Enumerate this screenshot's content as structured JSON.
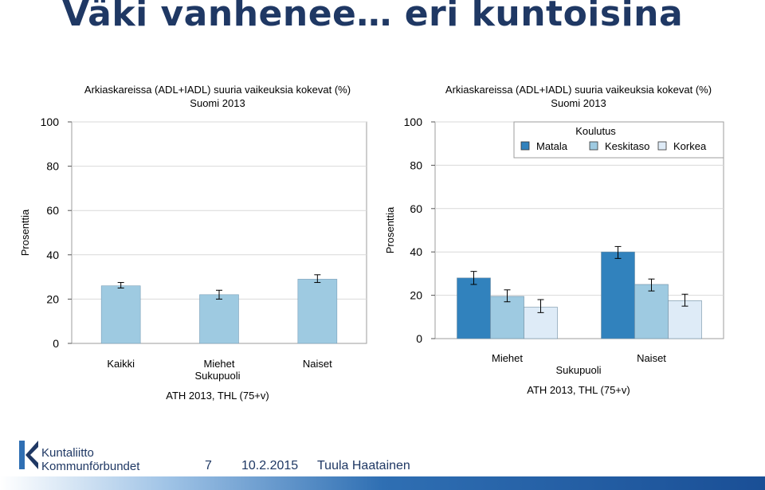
{
  "slide": {
    "title": "Väki vanhenee… eri kuntoisina"
  },
  "footer": {
    "logo_line1": "Kuntaliitto",
    "logo_line2": "Kommunförbundet",
    "page_number": "7",
    "date": "10.2.2015",
    "author": "Tuula Haatainen"
  },
  "colors": {
    "bar_single": "#9ecae1",
    "matala": "#3182bd",
    "keskitaso": "#9ecae1",
    "korkea": "#deebf7",
    "title": "#1f3864"
  },
  "chart_data": [
    {
      "type": "bar",
      "title": "Arkiaskareissa (ADL+IADL) suuria vaikeuksia kokevat (%)",
      "subtitle": "Suomi 2013",
      "categories": [
        "Kaikki",
        "Miehet",
        "Naiset"
      ],
      "values": [
        26,
        22,
        29
      ],
      "error": [
        [
          25,
          27.5
        ],
        [
          20,
          24
        ],
        [
          27.5,
          31
        ]
      ],
      "xlabel": "Sukupuoli",
      "ylabel": "Prosenttia",
      "ylim": [
        0,
        100
      ],
      "yticks": [
        0,
        20,
        40,
        60,
        80,
        100
      ],
      "source": "ATH 2013, THL (75+v)",
      "grid": true
    },
    {
      "type": "bar",
      "title": "Arkiaskareissa (ADL+IADL) suuria vaikeuksia kokevat (%)",
      "subtitle": "Suomi 2013",
      "categories": [
        "Miehet",
        "Naiset"
      ],
      "legend_title": "Koulutus",
      "legend_position": "top-right",
      "series": [
        {
          "name": "Matala",
          "values": [
            28,
            40
          ],
          "error": [
            [
              25,
              31
            ],
            [
              37,
              42.5
            ]
          ]
        },
        {
          "name": "Keskitaso",
          "values": [
            19.5,
            25
          ],
          "error": [
            [
              17,
              22.5
            ],
            [
              22,
              27.5
            ]
          ]
        },
        {
          "name": "Korkea",
          "values": [
            14.5,
            17.5
          ],
          "error": [
            [
              12,
              18
            ],
            [
              15,
              20.5
            ]
          ]
        }
      ],
      "xlabel": "Sukupuoli",
      "ylabel": "Prosenttia",
      "ylim": [
        0,
        100
      ],
      "yticks": [
        0,
        20,
        40,
        60,
        80,
        100
      ],
      "source": "ATH 2013, THL (75+v)",
      "grid": true
    }
  ]
}
